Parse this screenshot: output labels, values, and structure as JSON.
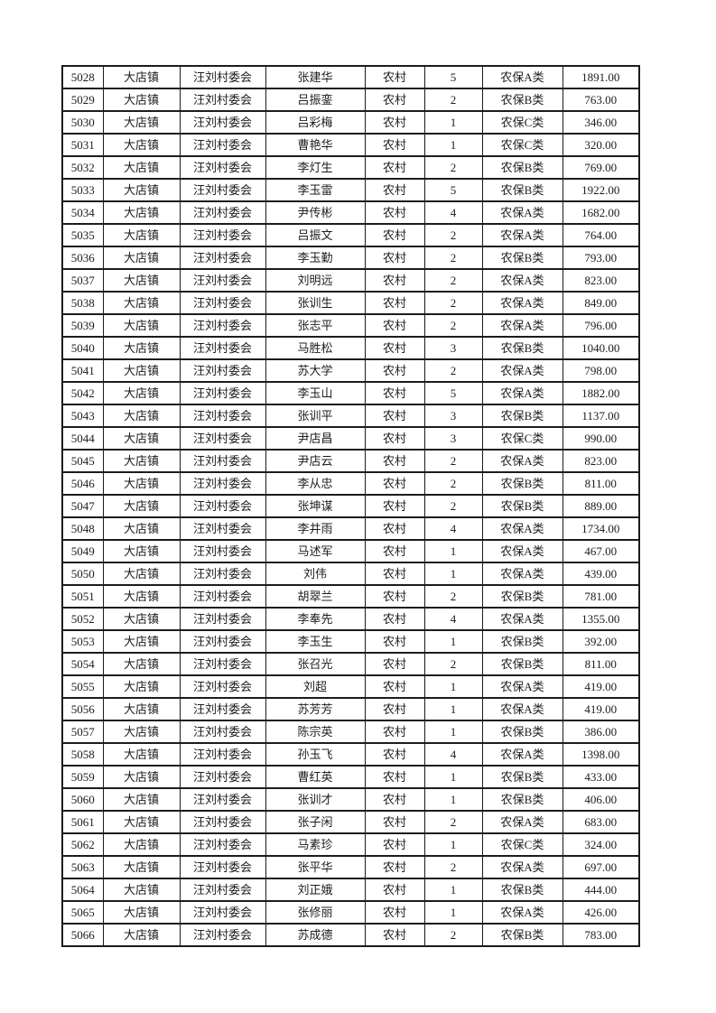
{
  "table": {
    "columns": [
      "serial_number",
      "town",
      "village_committee",
      "person_name",
      "residence_type",
      "person_count",
      "insurance_class",
      "amount"
    ],
    "rows": [
      [
        "5028",
        "大店镇",
        "汪刘村委会",
        "张建华",
        "农村",
        "5",
        "农保A类",
        "1891.00"
      ],
      [
        "5029",
        "大店镇",
        "汪刘村委会",
        "吕振銮",
        "农村",
        "2",
        "农保B类",
        "763.00"
      ],
      [
        "5030",
        "大店镇",
        "汪刘村委会",
        "吕彩梅",
        "农村",
        "1",
        "农保C类",
        "346.00"
      ],
      [
        "5031",
        "大店镇",
        "汪刘村委会",
        "曹艳华",
        "农村",
        "1",
        "农保C类",
        "320.00"
      ],
      [
        "5032",
        "大店镇",
        "汪刘村委会",
        "李灯生",
        "农村",
        "2",
        "农保B类",
        "769.00"
      ],
      [
        "5033",
        "大店镇",
        "汪刘村委会",
        "李玉雷",
        "农村",
        "5",
        "农保B类",
        "1922.00"
      ],
      [
        "5034",
        "大店镇",
        "汪刘村委会",
        "尹传彬",
        "农村",
        "4",
        "农保A类",
        "1682.00"
      ],
      [
        "5035",
        "大店镇",
        "汪刘村委会",
        "吕振文",
        "农村",
        "2",
        "农保A类",
        "764.00"
      ],
      [
        "5036",
        "大店镇",
        "汪刘村委会",
        "李玉勤",
        "农村",
        "2",
        "农保B类",
        "793.00"
      ],
      [
        "5037",
        "大店镇",
        "汪刘村委会",
        "刘明远",
        "农村",
        "2",
        "农保A类",
        "823.00"
      ],
      [
        "5038",
        "大店镇",
        "汪刘村委会",
        "张训生",
        "农村",
        "2",
        "农保A类",
        "849.00"
      ],
      [
        "5039",
        "大店镇",
        "汪刘村委会",
        "张志平",
        "农村",
        "2",
        "农保A类",
        "796.00"
      ],
      [
        "5040",
        "大店镇",
        "汪刘村委会",
        "马胜松",
        "农村",
        "3",
        "农保B类",
        "1040.00"
      ],
      [
        "5041",
        "大店镇",
        "汪刘村委会",
        "苏大学",
        "农村",
        "2",
        "农保A类",
        "798.00"
      ],
      [
        "5042",
        "大店镇",
        "汪刘村委会",
        "李玉山",
        "农村",
        "5",
        "农保A类",
        "1882.00"
      ],
      [
        "5043",
        "大店镇",
        "汪刘村委会",
        "张训平",
        "农村",
        "3",
        "农保B类",
        "1137.00"
      ],
      [
        "5044",
        "大店镇",
        "汪刘村委会",
        "尹店昌",
        "农村",
        "3",
        "农保C类",
        "990.00"
      ],
      [
        "5045",
        "大店镇",
        "汪刘村委会",
        "尹店云",
        "农村",
        "2",
        "农保A类",
        "823.00"
      ],
      [
        "5046",
        "大店镇",
        "汪刘村委会",
        "李从忠",
        "农村",
        "2",
        "农保B类",
        "811.00"
      ],
      [
        "5047",
        "大店镇",
        "汪刘村委会",
        "张坤谋",
        "农村",
        "2",
        "农保B类",
        "889.00"
      ],
      [
        "5048",
        "大店镇",
        "汪刘村委会",
        "李井雨",
        "农村",
        "4",
        "农保A类",
        "1734.00"
      ],
      [
        "5049",
        "大店镇",
        "汪刘村委会",
        "马述军",
        "农村",
        "1",
        "农保A类",
        "467.00"
      ],
      [
        "5050",
        "大店镇",
        "汪刘村委会",
        "刘伟",
        "农村",
        "1",
        "农保A类",
        "439.00"
      ],
      [
        "5051",
        "大店镇",
        "汪刘村委会",
        "胡翠兰",
        "农村",
        "2",
        "农保B类",
        "781.00"
      ],
      [
        "5052",
        "大店镇",
        "汪刘村委会",
        "李奉先",
        "农村",
        "4",
        "农保A类",
        "1355.00"
      ],
      [
        "5053",
        "大店镇",
        "汪刘村委会",
        "李玉生",
        "农村",
        "1",
        "农保B类",
        "392.00"
      ],
      [
        "5054",
        "大店镇",
        "汪刘村委会",
        "张召光",
        "农村",
        "2",
        "农保B类",
        "811.00"
      ],
      [
        "5055",
        "大店镇",
        "汪刘村委会",
        "刘超",
        "农村",
        "1",
        "农保A类",
        "419.00"
      ],
      [
        "5056",
        "大店镇",
        "汪刘村委会",
        "苏芳芳",
        "农村",
        "1",
        "农保A类",
        "419.00"
      ],
      [
        "5057",
        "大店镇",
        "汪刘村委会",
        "陈宗英",
        "农村",
        "1",
        "农保B类",
        "386.00"
      ],
      [
        "5058",
        "大店镇",
        "汪刘村委会",
        "孙玉飞",
        "农村",
        "4",
        "农保A类",
        "1398.00"
      ],
      [
        "5059",
        "大店镇",
        "汪刘村委会",
        "曹红英",
        "农村",
        "1",
        "农保B类",
        "433.00"
      ],
      [
        "5060",
        "大店镇",
        "汪刘村委会",
        "张训才",
        "农村",
        "1",
        "农保B类",
        "406.00"
      ],
      [
        "5061",
        "大店镇",
        "汪刘村委会",
        "张子闲",
        "农村",
        "2",
        "农保A类",
        "683.00"
      ],
      [
        "5062",
        "大店镇",
        "汪刘村委会",
        "马素珍",
        "农村",
        "1",
        "农保C类",
        "324.00"
      ],
      [
        "5063",
        "大店镇",
        "汪刘村委会",
        "张平华",
        "农村",
        "2",
        "农保A类",
        "697.00"
      ],
      [
        "5064",
        "大店镇",
        "汪刘村委会",
        "刘正娥",
        "农村",
        "1",
        "农保B类",
        "444.00"
      ],
      [
        "5065",
        "大店镇",
        "汪刘村委会",
        "张修丽",
        "农村",
        "1",
        "农保A类",
        "426.00"
      ],
      [
        "5066",
        "大店镇",
        "汪刘村委会",
        "苏成德",
        "农村",
        "2",
        "农保B类",
        "783.00"
      ]
    ],
    "colors": {
      "border": "#1c1c1c",
      "text": "#1c1c1c",
      "background": "#ffffff"
    }
  }
}
